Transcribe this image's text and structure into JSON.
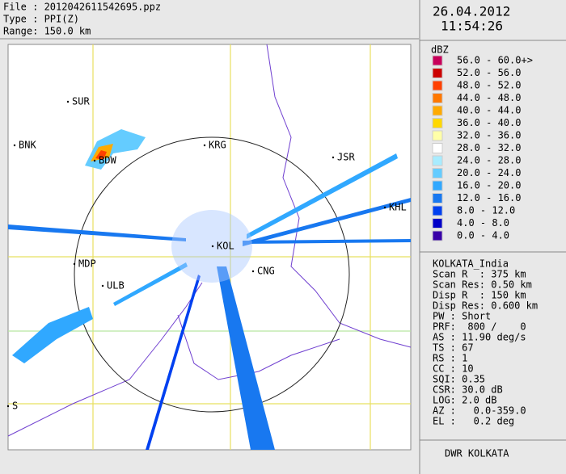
{
  "file_info": {
    "file": "File : 2012042611542695.ppz",
    "type": "Type : PPI(Z)",
    "range": "Range: 150.0 km"
  },
  "date": "26.04.2012",
  "time": "11:54:26",
  "legend": {
    "unit": "dBZ",
    "entries": [
      {
        "label": "56.0 - 60.0+>",
        "color": "#c8005a"
      },
      {
        "label": "52.0 - 56.0",
        "color": "#cc0000"
      },
      {
        "label": "48.0 - 52.0",
        "color": "#ff4000"
      },
      {
        "label": "44.0 - 48.0",
        "color": "#ff7800"
      },
      {
        "label": "40.0 - 44.0",
        "color": "#ffaa00"
      },
      {
        "label": "36.0 - 40.0",
        "color": "#ffd800"
      },
      {
        "label": "32.0 - 36.0",
        "color": "#ffffa8"
      },
      {
        "label": "28.0 - 32.0",
        "color": "#ffffff"
      },
      {
        "label": "24.0 - 28.0",
        "color": "#a8ecff"
      },
      {
        "label": "20.0 - 24.0",
        "color": "#64ccff"
      },
      {
        "label": "16.0 - 20.0",
        "color": "#30a8ff"
      },
      {
        "label": "12.0 - 16.0",
        "color": "#1878f0"
      },
      {
        "label": "8.0 - 12.0",
        "color": "#0040f0"
      },
      {
        "label": "4.0 - 8.0",
        "color": "#0000c8"
      },
      {
        "label": "0.0 - 4.0",
        "color": "#3800a8"
      }
    ]
  },
  "station_info": [
    "KOLKATA_India",
    "Scan R  : 375 km",
    "Scan Res: 0.50 km",
    "Disp R  : 150 km",
    "Disp Res: 0.600 km",
    "PW : Short",
    "PRF:  800 /    0",
    "AS : 11.90 deg/s",
    "TS : 67",
    "RS : 1",
    "CC : 10",
    "SQI: 0.35",
    "CSR: 30.0 dB",
    "LOG: 2.0 dB",
    "AZ :   0.0-359.0",
    "EL :   0.2 deg"
  ],
  "map_labels": [
    "SUR",
    "BNK",
    "BDW",
    "KRG",
    "JSR",
    "KHL",
    "KOL",
    "MDP",
    "CNG",
    "ULB",
    "S"
  ],
  "footer": "DWR KOLKATA"
}
